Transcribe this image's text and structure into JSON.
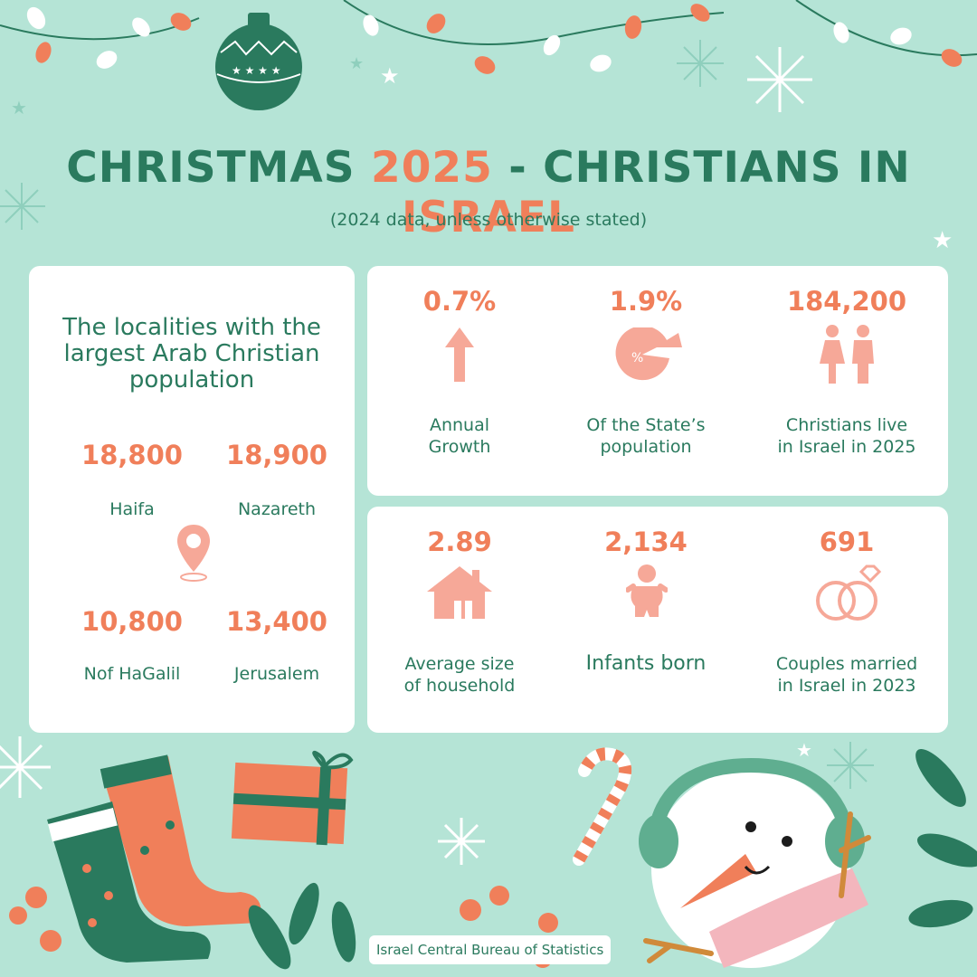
{
  "header": {
    "title_part1": "CHRISTMAS ",
    "title_year": "2025",
    "title_part2": " - CHRISTIANS IN ",
    "title_country": "ISRAEL",
    "subtitle": "(2024 data, unless otherwise stated)"
  },
  "localities": {
    "heading": "The localities with the largest Arab Christian population",
    "items": [
      {
        "value": "18,800",
        "name": "Haifa"
      },
      {
        "value": "18,900",
        "name": "Nazareth"
      },
      {
        "value": "10,800",
        "name": "Nof HaGalil"
      },
      {
        "value": "13,400",
        "name": "Jerusalem"
      }
    ]
  },
  "stats_top": [
    {
      "value": "0.7%",
      "label_line1": "Annual",
      "label_line2": "Growth",
      "icon": "arrow-up-icon"
    },
    {
      "value": "1.9%",
      "label_line1": "Of the State’s",
      "label_line2": "population",
      "icon": "pie-percent-icon"
    },
    {
      "value": "184,200",
      "label_line1": "Christians live",
      "label_line2": "in Israel in 2025",
      "icon": "people-icon"
    }
  ],
  "stats_bottom": [
    {
      "value": "2.89",
      "label_line1": "Average size",
      "label_line2": "of household",
      "icon": "house-icon"
    },
    {
      "value": "2,134",
      "label_line1": "Infants born",
      "label_line2": "",
      "icon": "baby-icon"
    },
    {
      "value": "691",
      "label_line1": "Couples married",
      "label_line2": "in Israel in 2023",
      "icon": "rings-icon"
    }
  ],
  "source": "Israel Central Bureau of Statistics",
  "colors": {
    "background": "#b5e4d6",
    "green": "#2a7a5e",
    "orange": "#f07f5a",
    "icon_pink": "#f6a898",
    "card": "#ffffff"
  }
}
